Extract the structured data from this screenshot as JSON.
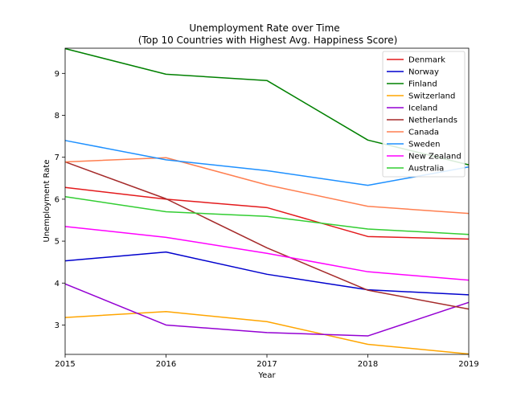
{
  "chart_data": {
    "type": "line",
    "title": "Unemployment Rate over Time",
    "subtitle": "(Top 10 Countries with Highest Avg. Happiness Score)",
    "xlabel": "Year",
    "ylabel": "Unemployment Rate",
    "x": [
      2015,
      2016,
      2017,
      2018,
      2019
    ],
    "xlim": [
      2015,
      2019
    ],
    "ylim": [
      2.3,
      9.6
    ],
    "yticks": [
      3,
      4,
      5,
      6,
      7,
      8,
      9
    ],
    "grid": false,
    "legend_position": "top-right",
    "series": [
      {
        "name": "Denmark",
        "color": "#e31a1c",
        "values": [
          6.28,
          6.0,
          5.8,
          5.11,
          5.05
        ]
      },
      {
        "name": "Norway",
        "color": "#0000cd",
        "values": [
          4.53,
          4.74,
          4.21,
          3.84,
          3.72
        ]
      },
      {
        "name": "Finland",
        "color": "#008000",
        "values": [
          9.59,
          8.98,
          8.83,
          7.41,
          6.82
        ]
      },
      {
        "name": "Switzerland",
        "color": "#ffa500",
        "values": [
          3.18,
          3.32,
          3.08,
          2.54,
          2.31
        ]
      },
      {
        "name": "Iceland",
        "color": "#9400d3",
        "values": [
          3.98,
          3.0,
          2.82,
          2.74,
          3.54
        ]
      },
      {
        "name": "Netherlands",
        "color": "#a52a2a",
        "values": [
          6.89,
          6.01,
          4.84,
          3.83,
          3.38
        ]
      },
      {
        "name": "Canada",
        "color": "#ff7f50",
        "values": [
          6.89,
          6.99,
          6.34,
          5.83,
          5.66
        ]
      },
      {
        "name": "Sweden",
        "color": "#1e90ff",
        "values": [
          7.4,
          6.94,
          6.68,
          6.33,
          6.77
        ]
      },
      {
        "name": "New Zealand",
        "color": "#ff00ff",
        "values": [
          5.35,
          5.09,
          4.71,
          4.27,
          4.07
        ]
      },
      {
        "name": "Australia",
        "color": "#32cd32",
        "values": [
          6.06,
          5.7,
          5.59,
          5.29,
          5.16
        ]
      }
    ]
  }
}
